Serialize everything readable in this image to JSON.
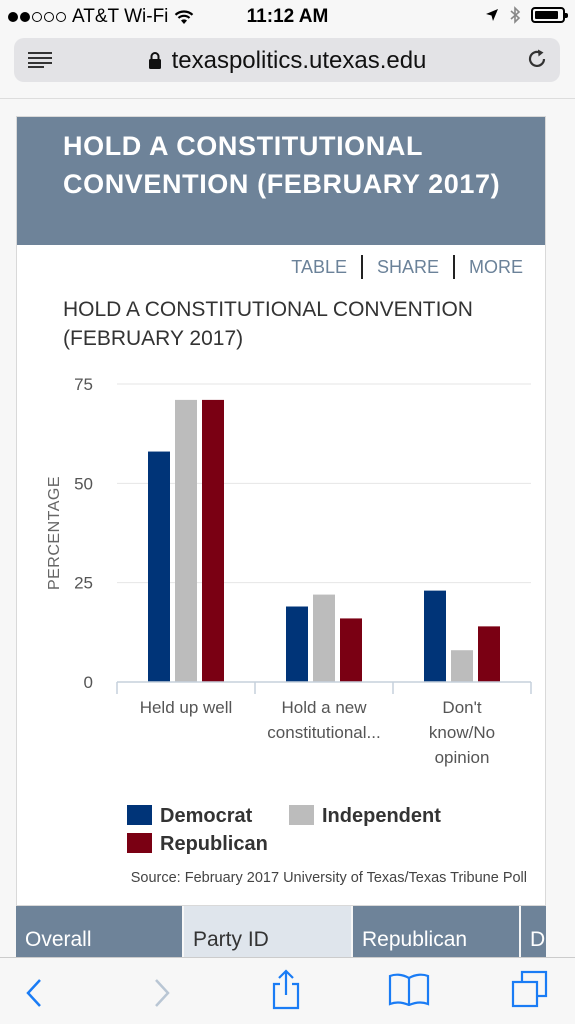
{
  "status_bar": {
    "carrier": "AT&T Wi-Fi",
    "time": "11:12 AM",
    "signal_bars_filled": 2,
    "signal_bars_total": 5,
    "battery_level": 0.9
  },
  "browser": {
    "url": "texaspolitics.utexas.edu"
  },
  "card": {
    "header_title": "HOLD A CONSTITUTIONAL CONVENTION (FEBRUARY 2017)",
    "actions": [
      "TABLE",
      "SHARE",
      "MORE"
    ]
  },
  "chart_data": {
    "type": "bar",
    "title": "HOLD A CONSTITUTIONAL CONVENTION (FEBRUARY 2017)",
    "ylabel": "PERCENTAGE",
    "xlabel": "",
    "ylim": [
      0,
      75
    ],
    "yticks": [
      0,
      25,
      50,
      75
    ],
    "grid": true,
    "categories": [
      [
        "Held up well"
      ],
      [
        "Hold a new",
        "constitutional..."
      ],
      [
        "Don't",
        "know/No",
        "opinion"
      ]
    ],
    "series": [
      {
        "name": "Democrat",
        "color": "#003478",
        "values": [
          58,
          19,
          23
        ]
      },
      {
        "name": "Independent",
        "color": "#bcbcbc",
        "values": [
          71,
          22,
          8
        ]
      },
      {
        "name": "Republican",
        "color": "#7a0013",
        "values": [
          71,
          16,
          14
        ]
      }
    ],
    "legend_position": "bottom",
    "source": "Source: February 2017 University of Texas/Texas Tribune Poll"
  },
  "tabs": [
    {
      "label": "Overall",
      "active": false
    },
    {
      "label": "Party ID",
      "active": true
    },
    {
      "label": "Republican",
      "active": false
    },
    {
      "label": "D",
      "active": false
    }
  ],
  "toolbar": {
    "icons": [
      "back-icon",
      "forward-icon",
      "share-icon",
      "bookmarks-icon",
      "tabs-icon"
    ]
  }
}
